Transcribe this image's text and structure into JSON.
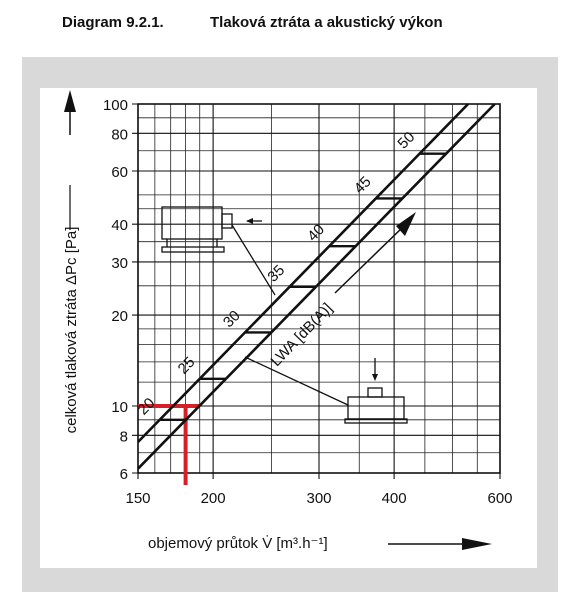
{
  "chart_data": {
    "type": "line",
    "title": "Diagram 9.2.1.",
    "subtitle": "Tlaková ztráta a akustický výkon",
    "x_label": "objemový průtok V̇ [m³.h⁻¹]",
    "y_label": "celková tlaková ztráta ΔPc [Pa]",
    "log_x": true,
    "log_y": true,
    "grid": true,
    "xlim": [
      150,
      600
    ],
    "ylim": [
      6,
      100
    ],
    "xticks": [
      150,
      200,
      300,
      400,
      600
    ],
    "yticks": [
      6,
      8,
      10,
      20,
      30,
      40,
      60,
      80,
      100
    ],
    "xgrid": [
      160,
      170,
      180,
      190,
      250,
      350,
      450,
      500,
      550
    ],
    "ygrid": [
      7,
      9,
      12,
      14,
      16,
      18,
      25,
      35,
      45,
      50,
      70,
      90
    ],
    "series": [
      {
        "color": "#111111",
        "x": [
          150,
          531
        ],
        "values": [
          7.6,
          100
        ]
      },
      {
        "color": "#111111",
        "x": [
          150,
          588
        ],
        "values": [
          6.2,
          100
        ]
      }
    ],
    "sound_power": {
      "name": "LWA [dB(A)]",
      "values": [
        20,
        25,
        30,
        35,
        40,
        45,
        50
      ],
      "x": [
        163,
        190,
        226,
        268,
        312,
        373,
        441
      ]
    },
    "marker": {
      "color": "#d62027",
      "x": 180,
      "y": 10
    }
  }
}
